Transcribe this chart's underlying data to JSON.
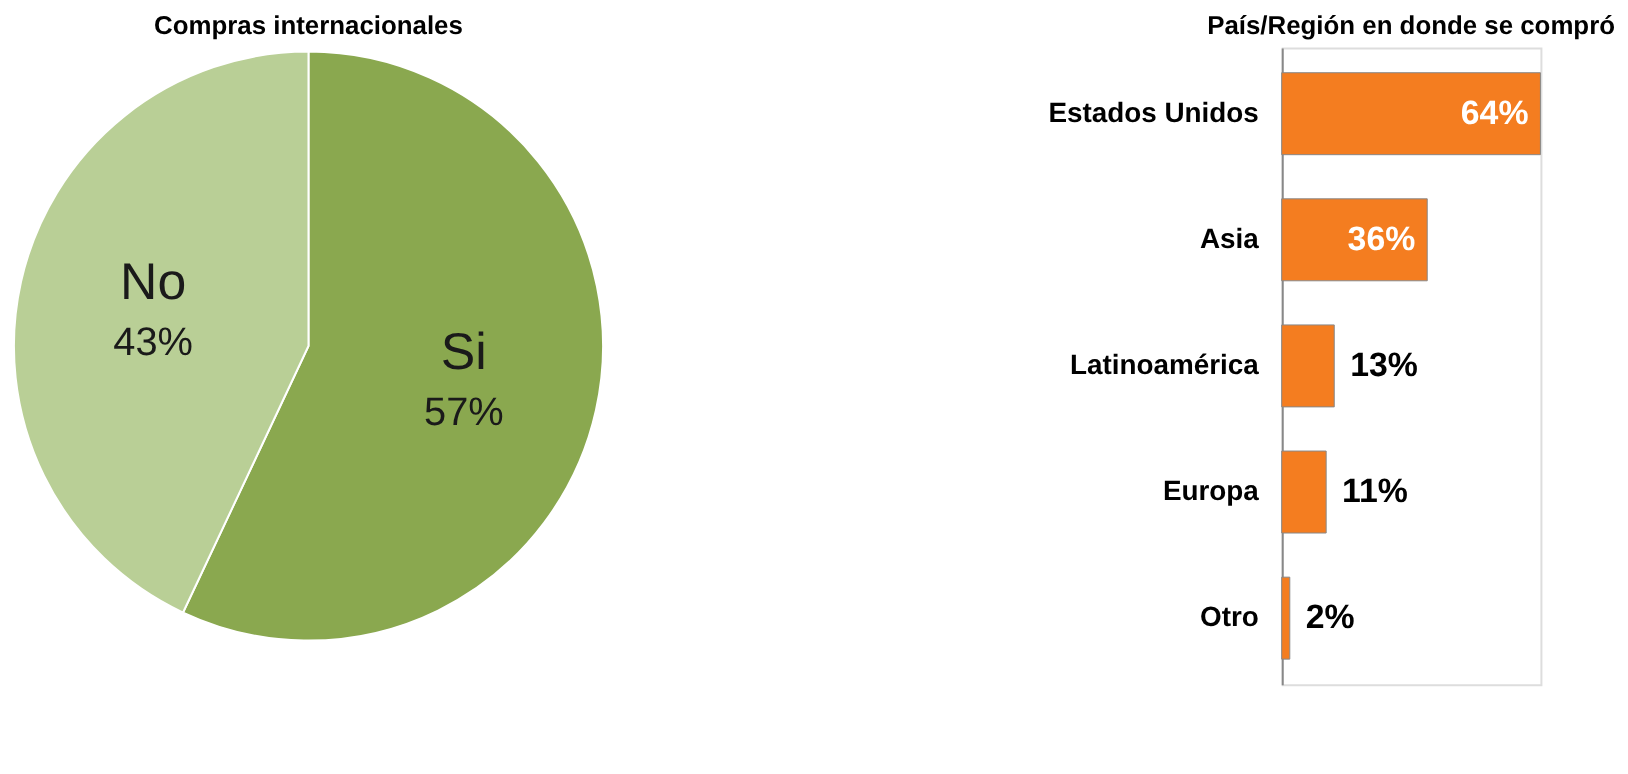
{
  "chart_data": [
    {
      "type": "pie",
      "title": "Compras internacionales",
      "categories": [
        "Si",
        "No"
      ],
      "values": [
        57,
        43
      ],
      "colors": [
        "#8aa84f",
        "#b9cf96"
      ],
      "value_labels": [
        "57%",
        "43%"
      ],
      "legend": false
    },
    {
      "type": "bar",
      "title": "País/Región en donde se compró",
      "orientation": "horizontal",
      "categories": [
        "Estados Unidos",
        "Asia",
        "Latinoamérica",
        "Europa",
        "Otro"
      ],
      "values": [
        64,
        36,
        13,
        11,
        2
      ],
      "color": "#f47d20",
      "value_labels": [
        "64%",
        "36%",
        "13%",
        "11%",
        "2%"
      ],
      "grid": false
    }
  ]
}
